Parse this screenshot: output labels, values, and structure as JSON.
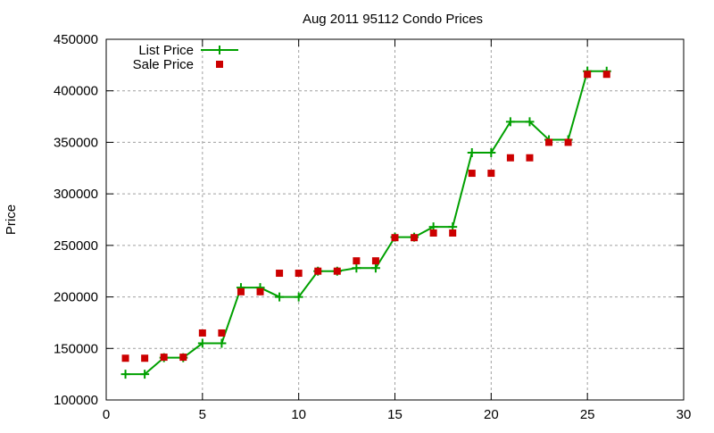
{
  "chart_data": {
    "type": "line",
    "title": "Aug 2011 95112 Condo Prices",
    "xlabel": "",
    "ylabel": "Price",
    "xlim": [
      0,
      30
    ],
    "ylim": [
      100000,
      450000
    ],
    "xticks": [
      0,
      5,
      10,
      15,
      20,
      25,
      30
    ],
    "yticks": [
      100000,
      150000,
      200000,
      250000,
      300000,
      350000,
      400000,
      450000
    ],
    "grid": true,
    "legend_position": "top-left",
    "x": [
      1,
      2,
      3,
      4,
      5,
      6,
      7,
      8,
      9,
      10,
      11,
      12,
      13,
      14,
      15,
      16,
      17,
      18,
      19,
      20,
      21,
      22,
      23,
      24,
      25,
      26
    ],
    "series": [
      {
        "name": "List Price",
        "style": "linespoints",
        "color": "#00a000",
        "values": [
          125000,
          125000,
          141000,
          141000,
          155000,
          155000,
          209000,
          209000,
          200000,
          200000,
          225000,
          225000,
          228000,
          228000,
          258000,
          258000,
          268000,
          268000,
          340000,
          340000,
          370000,
          370000,
          352500,
          352500,
          419000,
          419000
        ]
      },
      {
        "name": "Sale Price",
        "style": "points",
        "color": "#cc0000",
        "values": [
          140500,
          140500,
          141500,
          141500,
          165000,
          165000,
          205000,
          205000,
          223000,
          223000,
          225000,
          225000,
          235000,
          235000,
          257500,
          257500,
          262000,
          262000,
          320000,
          320000,
          335000,
          335000,
          350000,
          350000,
          416000,
          416000
        ]
      }
    ]
  }
}
